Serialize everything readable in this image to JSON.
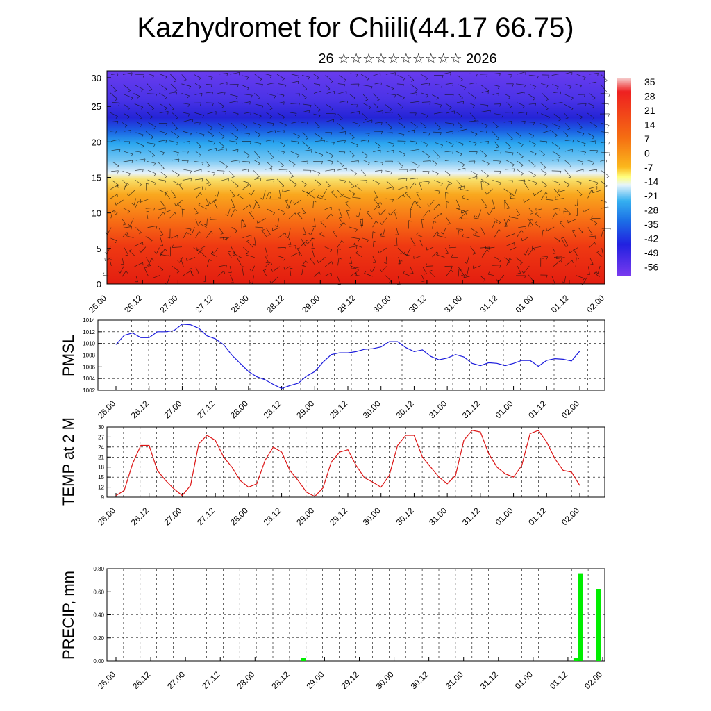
{
  "title": "Kazhydromet for Chiili(44.17 66.75)",
  "subtitle": "26 ☆☆☆☆☆☆☆☆☆☆ 2026",
  "x_tick_labels": [
    "26.00",
    "26.12",
    "27.00",
    "27.12",
    "28.00",
    "28.12",
    "29.00",
    "29.12",
    "30.00",
    "30.12",
    "31.00",
    "31.12",
    "01.00",
    "01.12",
    "02.00"
  ],
  "colors": {
    "pmsl_line": "#1a1adc",
    "temp_line": "#dc1414",
    "precip_bar": "#00ee00"
  },
  "chart_data": [
    {
      "type": "heatmap",
      "title": "Temperature cross-section with wind barbs",
      "ylim": [
        0,
        30
      ],
      "y_tick_labels": [
        "0",
        "5",
        "10",
        "15",
        "20",
        "25",
        "30"
      ],
      "colorbar_labels": [
        "35",
        "28",
        "21",
        "14",
        "7",
        "0",
        "-7",
        "-14",
        "-21",
        "-28",
        "-35",
        "-42",
        "-49",
        "-56"
      ],
      "x_tick_labels_ref": "x_tick_labels"
    },
    {
      "type": "line",
      "ylabel": "PMSL",
      "ylim": [
        1002,
        1014
      ],
      "y_tick_labels": [
        "1002",
        "1004",
        "1006",
        "1008",
        "1010",
        "1012",
        "1014"
      ],
      "values": [
        1009.8,
        1011.4,
        1011.8,
        1011.0,
        1011.0,
        1012.0,
        1012.0,
        1012.2,
        1013.3,
        1013.2,
        1012.6,
        1011.3,
        1010.8,
        1009.8,
        1008.0,
        1006.6,
        1005.2,
        1004.3,
        1003.8,
        1003.0,
        1002.3,
        1002.8,
        1003.2,
        1004.4,
        1005.2,
        1006.8,
        1008.1,
        1008.4,
        1008.4,
        1008.6,
        1009.0,
        1009.1,
        1009.4,
        1010.3,
        1010.3,
        1009.3,
        1008.6,
        1008.9,
        1007.8,
        1007.2,
        1007.5,
        1008.1,
        1007.7,
        1006.6,
        1006.2,
        1006.7,
        1006.6,
        1006.2,
        1006.6,
        1007.1,
        1007.1,
        1006.1,
        1007.1,
        1007.4,
        1007.3,
        1007.0,
        1008.7
      ]
    },
    {
      "type": "line",
      "ylabel": "TEMP at 2 M",
      "ylim": [
        9,
        30
      ],
      "y_tick_labels": [
        "9",
        "12",
        "15",
        "18",
        "21",
        "24",
        "27",
        "30"
      ],
      "values": [
        9.5,
        11,
        19,
        24.5,
        24.5,
        17,
        14,
        11.5,
        9.5,
        12.5,
        25,
        27.5,
        26,
        21,
        18,
        14,
        12,
        13,
        20,
        24,
        22.5,
        17,
        14,
        10.5,
        9.2,
        11.8,
        19.5,
        22.5,
        23.2,
        18.5,
        14.8,
        13.5,
        12,
        15.5,
        24.5,
        27.5,
        27.5,
        21,
        18,
        15,
        13,
        15.5,
        26,
        29,
        28.5,
        22,
        18,
        16,
        15,
        18.5,
        28,
        29,
        25.5,
        20.5,
        17,
        16.5,
        12.5
      ]
    },
    {
      "type": "bar",
      "ylabel": "PRECIP, mm",
      "ylim": [
        0,
        0.8
      ],
      "y_tick_labels": [
        "0.00",
        "0.20",
        "0.40",
        "0.60",
        "0.80"
      ],
      "values": [
        0,
        0,
        0,
        0,
        0,
        0,
        0,
        0,
        0,
        0,
        0,
        0,
        0,
        0,
        0,
        0,
        0,
        0,
        0,
        0,
        0,
        0,
        0,
        0,
        0,
        0,
        0,
        0,
        0,
        0,
        0,
        0,
        0,
        0,
        0,
        0,
        0,
        0,
        0,
        0,
        0,
        0,
        0.03,
        0,
        0,
        0,
        0,
        0,
        0,
        0,
        0,
        0,
        0,
        0,
        0,
        0,
        0,
        0,
        0,
        0,
        0,
        0,
        0,
        0,
        0,
        0,
        0,
        0,
        0,
        0,
        0,
        0,
        0,
        0,
        0,
        0,
        0,
        0,
        0,
        0,
        0,
        0,
        0,
        0,
        0,
        0,
        0,
        0,
        0,
        0,
        0,
        0,
        0,
        0,
        0,
        0,
        0,
        0,
        0,
        0,
        0,
        0,
        0,
        0.03,
        0.76,
        0,
        0,
        0,
        0.62,
        0
      ]
    }
  ]
}
